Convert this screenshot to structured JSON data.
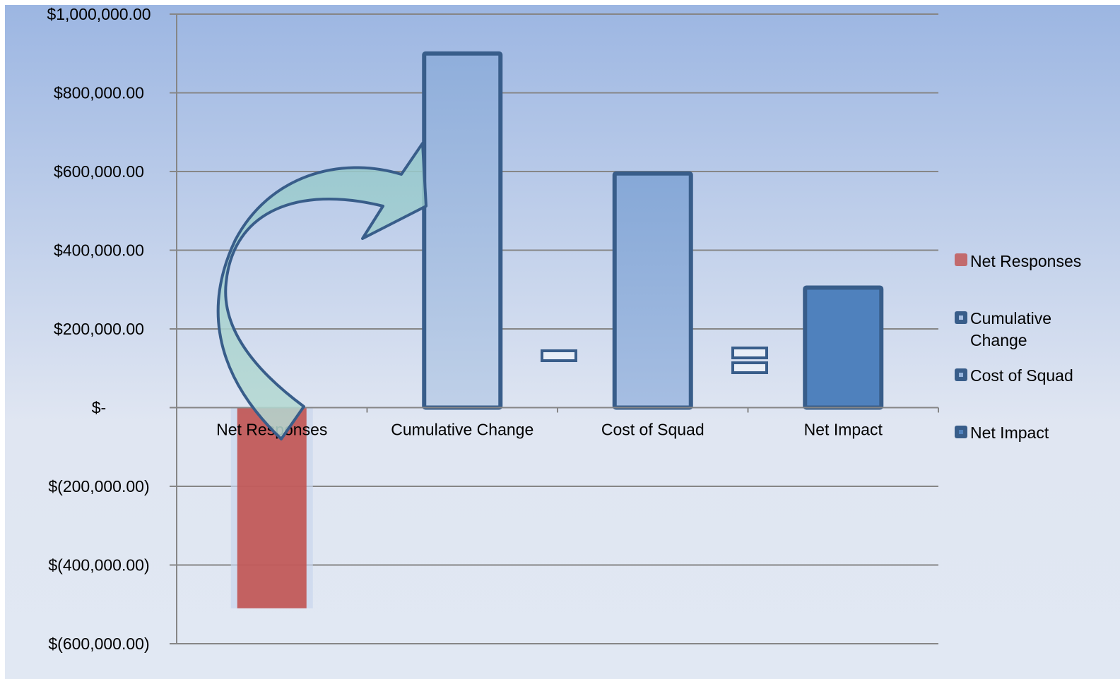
{
  "chart_data": {
    "type": "bar",
    "categories": [
      "Net Responses",
      "Cumulative Change",
      "Cost of Squad",
      "Net Impact"
    ],
    "series": [
      {
        "name": "Net Responses",
        "values": [
          -510000,
          null,
          null,
          null
        ],
        "color": "#C0504D"
      },
      {
        "name": "Cumulative Change",
        "values": [
          null,
          900000,
          null,
          null
        ],
        "color": "#A7BFE3"
      },
      {
        "name": "Cost of Squad",
        "values": [
          null,
          null,
          595000,
          null
        ],
        "color": "#95B3DB"
      },
      {
        "name": "Net Impact",
        "values": [
          null,
          null,
          null,
          305000
        ],
        "color": "#4F81BD"
      }
    ],
    "ylim": [
      -600000,
      1000000
    ],
    "y_ticks": [
      1000000,
      800000,
      600000,
      400000,
      200000,
      0,
      -200000,
      -400000,
      -600000
    ],
    "y_tick_labels": [
      "$1,000,000.00",
      "$800,000.00",
      "$600,000.00",
      "$400,000.00",
      "$200,000.00",
      "$-",
      "$(200,000.00)",
      "$(400,000.00)",
      "$(600,000.00)"
    ],
    "grid": true,
    "legend_position": "right",
    "annotations": [
      "arrow-from-net-responses-to-cumulative-change",
      "minus-sign",
      "equals-sign"
    ],
    "outline_color": "#385D8A",
    "arrow_fill": "#9FCDC9"
  },
  "legend": {
    "items": [
      "Net Responses",
      "Cumulative",
      "Change",
      "Cost of Squad",
      "Net Impact"
    ]
  }
}
